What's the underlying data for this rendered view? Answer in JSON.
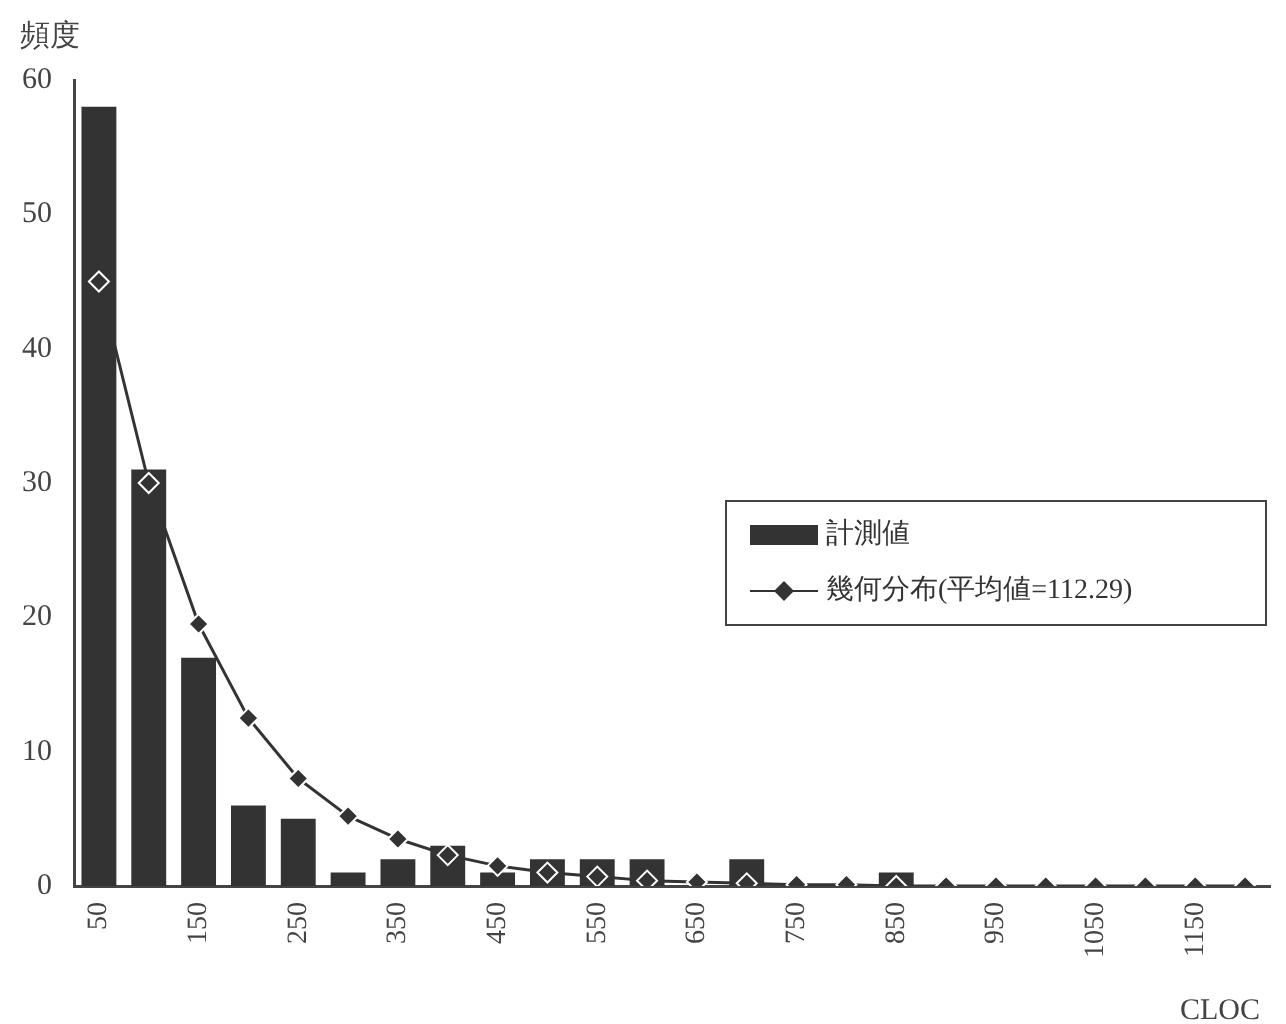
{
  "chart_data": {
    "type": "bar",
    "xlabel": "CLOC",
    "ylabel": "頻度",
    "categories": [
      "50",
      null,
      "150",
      null,
      "250",
      null,
      "350",
      null,
      "450",
      null,
      "550",
      null,
      "650",
      null,
      "750",
      null,
      "850",
      null,
      "950",
      null,
      "1050",
      null,
      "1150",
      null
    ],
    "series": [
      {
        "name": "計測値",
        "color": "#333333",
        "values": [
          58,
          31,
          17,
          6,
          5,
          1,
          2,
          3,
          1,
          2,
          2,
          2,
          0,
          2,
          0,
          0,
          1,
          0,
          0,
          0,
          0,
          0,
          0,
          0
        ]
      },
      {
        "name": "幾何分布(平均値=112.29)",
        "type": "line",
        "color": "#333333",
        "marker": "diamond",
        "values": [
          45,
          30,
          19.5,
          12.5,
          8,
          5.2,
          3.5,
          2.3,
          1.5,
          1,
          0.7,
          0.4,
          0.3,
          0.2,
          0.1,
          0.1,
          0,
          0,
          0,
          0,
          0,
          0,
          0,
          0
        ]
      }
    ],
    "ylim": [
      0,
      60
    ],
    "yticks": [
      0,
      10,
      20,
      30,
      40,
      50,
      60
    ],
    "grid": false,
    "legend": "right"
  }
}
